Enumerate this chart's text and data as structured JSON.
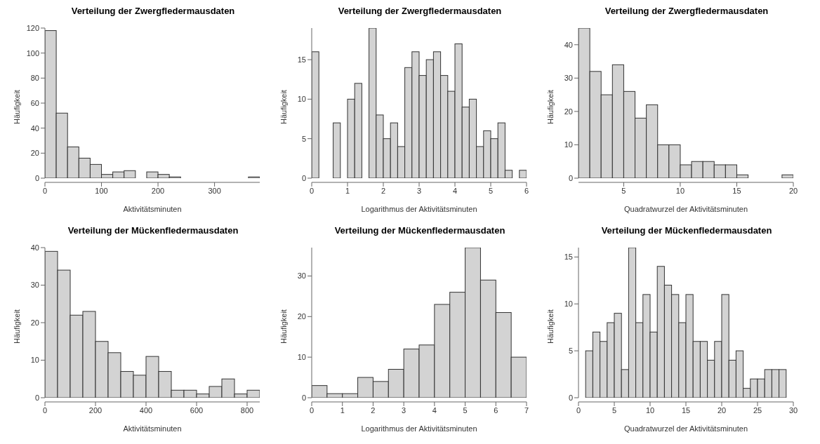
{
  "chart_data": [
    {
      "type": "histogram",
      "title": "Verteilung der Zwergfledermausdaten",
      "xlabel": "Aktivitätsminuten",
      "ylabel": "Häufigkeit",
      "color": "#d3d3d3",
      "bins": [
        0,
        20,
        40,
        60,
        80,
        100,
        120,
        140,
        160,
        180,
        200,
        220,
        240,
        260,
        280,
        300,
        320,
        340,
        360,
        380
      ],
      "values": [
        118,
        52,
        25,
        16,
        11,
        3,
        5,
        6,
        0,
        5,
        3,
        1,
        0,
        0,
        0,
        0,
        0,
        0,
        1
      ],
      "xlim": [
        0,
        380
      ],
      "xticks": [
        0,
        100,
        200,
        300
      ],
      "ylim": [
        0,
        120
      ],
      "yticks": [
        0,
        20,
        40,
        60,
        80,
        100,
        120
      ]
    },
    {
      "type": "histogram",
      "title": "Verteilung der Zwergfledermausdaten",
      "xlabel": "Logarithmus der Aktivitätsminuten",
      "ylabel": "Häufigkeit",
      "color": "#d3d3d3",
      "bins": [
        0,
        0.2,
        0.4,
        0.6,
        0.8,
        1,
        1.2,
        1.4,
        1.6,
        1.8,
        2,
        2.2,
        2.4,
        2.6,
        2.8,
        3,
        3.2,
        3.4,
        3.6,
        3.8,
        4,
        4.2,
        4.4,
        4.6,
        4.8,
        5,
        5.2,
        5.4,
        5.6,
        5.8,
        6
      ],
      "values": [
        16,
        0,
        0,
        7,
        0,
        10,
        12,
        0,
        19,
        8,
        5,
        7,
        4,
        14,
        16,
        13,
        15,
        16,
        13,
        11,
        17,
        9,
        10,
        4,
        6,
        5,
        7,
        1,
        0,
        1
      ],
      "xlim": [
        0,
        6
      ],
      "xticks": [
        0,
        1,
        2,
        3,
        4,
        5,
        6
      ],
      "ylim": [
        0,
        19
      ],
      "yticks": [
        0,
        5,
        10,
        15
      ]
    },
    {
      "type": "histogram",
      "title": "Verteilung der Zwergfledermausdaten",
      "xlabel": "Quadratwurzel der Aktivitätsminuten",
      "ylabel": "Häufigkeit",
      "color": "#d3d3d3",
      "bins": [
        1,
        2,
        3,
        4,
        5,
        6,
        7,
        8,
        9,
        10,
        11,
        12,
        13,
        14,
        15,
        16,
        17,
        18,
        19,
        20
      ],
      "values": [
        45,
        32,
        25,
        34,
        26,
        18,
        22,
        10,
        10,
        4,
        5,
        5,
        4,
        4,
        1,
        0,
        0,
        0,
        1
      ],
      "xlim": [
        1,
        20
      ],
      "xticks": [
        5,
        10,
        15,
        20
      ],
      "ylim": [
        0,
        45
      ],
      "yticks": [
        0,
        10,
        20,
        30,
        40
      ]
    },
    {
      "type": "histogram",
      "title": "Verteilung der Mückenfledermausdaten",
      "xlabel": "Aktivitätsminuten",
      "ylabel": "Häufigkeit",
      "color": "#d3d3d3",
      "bins": [
        0,
        50,
        100,
        150,
        200,
        250,
        300,
        350,
        400,
        450,
        500,
        550,
        600,
        650,
        700,
        750,
        800,
        850
      ],
      "values": [
        39,
        34,
        22,
        23,
        15,
        12,
        7,
        6,
        11,
        7,
        2,
        2,
        1,
        3,
        5,
        1,
        2
      ],
      "xlim": [
        0,
        850
      ],
      "xticks": [
        0,
        200,
        400,
        600,
        800
      ],
      "ylim": [
        0,
        40
      ],
      "yticks": [
        0,
        10,
        20,
        30,
        40
      ]
    },
    {
      "type": "histogram",
      "title": "Verteilung der Mückenfledermausdaten",
      "xlabel": "Logarithmus der Aktivitätsminuten",
      "ylabel": "Häufigkeit",
      "color": "#d3d3d3",
      "bins": [
        0,
        0.5,
        1,
        1.5,
        2,
        2.5,
        3,
        3.5,
        4,
        4.5,
        5,
        5.5,
        6,
        6.5,
        7
      ],
      "values": [
        3,
        1,
        1,
        5,
        4,
        7,
        12,
        13,
        23,
        26,
        37,
        29,
        21,
        10
      ],
      "xlim": [
        0,
        7
      ],
      "xticks": [
        0,
        1,
        2,
        3,
        4,
        5,
        6,
        7
      ],
      "ylim": [
        0,
        37
      ],
      "yticks": [
        0,
        10,
        20,
        30
      ]
    },
    {
      "type": "histogram",
      "title": "Verteilung der Mückenfledermausdaten",
      "xlabel": "Quadratwurzel der Aktivitätsminuten",
      "ylabel": "Häufigkeit",
      "color": "#d3d3d3",
      "bins": [
        1,
        2,
        3,
        4,
        5,
        6,
        7,
        8,
        9,
        10,
        11,
        12,
        13,
        14,
        15,
        16,
        17,
        18,
        19,
        20,
        21,
        22,
        23,
        24,
        25,
        26,
        27,
        28,
        29
      ],
      "values": [
        5,
        7,
        6,
        8,
        9,
        3,
        16,
        8,
        11,
        7,
        14,
        12,
        11,
        8,
        11,
        6,
        6,
        4,
        6,
        11,
        4,
        5,
        1,
        2,
        2,
        3,
        3,
        3
      ],
      "xlim": [
        0,
        30
      ],
      "xticks": [
        0,
        5,
        10,
        15,
        20,
        25,
        30
      ],
      "ylim": [
        0,
        16
      ],
      "yticks": [
        0,
        5,
        10,
        15
      ]
    }
  ]
}
